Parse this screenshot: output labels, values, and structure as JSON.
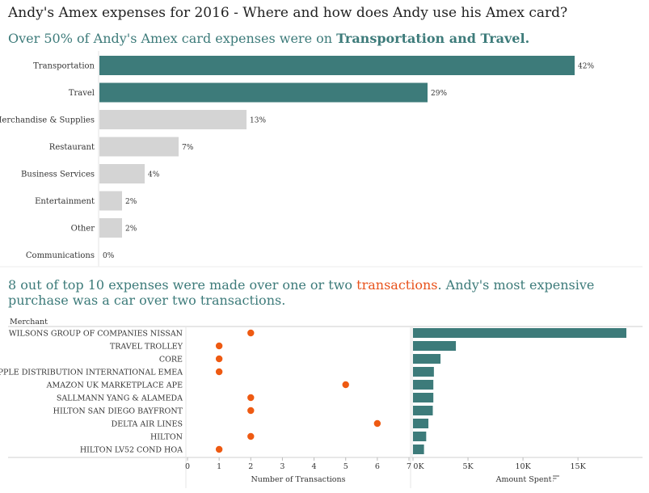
{
  "title": "Andy's Amex expenses for 2016 - Where and how does Andy use his Amex card?",
  "subtitle": {
    "prefix": "Over 50% of Andy's Amex card expenses were on ",
    "bold": "Transportation and Travel."
  },
  "subtitle2": {
    "part1": "8 out of top 10 expenses were made over one or two ",
    "highlight": "transactions",
    "part2": ". Andy's most expensive purchase was a car over two transactions."
  },
  "colors": {
    "highlight_bar": "#3d7b7a",
    "muted_bar": "#d4d4d4",
    "dot": "#ee5a12",
    "text_accent": "#3d7b7a",
    "text_orange": "#e8531c"
  },
  "chart_data": [
    {
      "type": "bar",
      "orientation": "horizontal",
      "categories": [
        "Transportation",
        "Travel",
        "Merchandise & Supplies",
        "Restaurant",
        "Business Services",
        "Entertainment",
        "Other",
        "Communications"
      ],
      "values": [
        42,
        29,
        13,
        7,
        4,
        2,
        2,
        0
      ],
      "value_labels": [
        "42%",
        "29%",
        "13%",
        "7%",
        "4%",
        "2%",
        "2%",
        "0%"
      ],
      "highlighted": [
        "Transportation",
        "Travel"
      ],
      "xlim": [
        0,
        44
      ]
    },
    {
      "type": "scatter",
      "row_header": "Merchant",
      "categories": [
        "WILSONS GROUP OF COMPANIES NISSAN",
        "TRAVEL TROLLEY",
        "CORE",
        "APPLE DISTRIBUTION INTERNATIONAL EMEA",
        "AMAZON UK MARKETPLACE APE",
        "SALLMANN YANG & ALAMEDA",
        "HILTON SAN DIEGO BAYFRONT",
        "DELTA AIR LINES",
        "HILTON",
        "HILTON LV52 COND HOA"
      ],
      "values": [
        2,
        1,
        1,
        1,
        5,
        2,
        2,
        6,
        2,
        1
      ],
      "xlabel": "Number of Transactions",
      "xticks": [
        "0",
        "1",
        "2",
        "3",
        "4",
        "5",
        "6",
        "7"
      ],
      "xlim": [
        0,
        7
      ]
    },
    {
      "type": "bar",
      "orientation": "horizontal",
      "categories": [
        "WILSONS GROUP OF COMPANIES NISSAN",
        "TRAVEL TROLLEY",
        "CORE",
        "APPLE DISTRIBUTION INTERNATIONAL EMEA",
        "AMAZON UK MARKETPLACE APE",
        "SALLMANN YANG & ALAMEDA",
        "HILTON SAN DIEGO BAYFRONT",
        "DELTA AIR LINES",
        "HILTON",
        "HILTON LV52 COND HOA"
      ],
      "values": [
        19400,
        3900,
        2500,
        1900,
        1850,
        1850,
        1800,
        1400,
        1200,
        1000
      ],
      "xlabel": "Amount Spent",
      "xticks": [
        "0K",
        "5K",
        "10K",
        "15K"
      ],
      "xlim": [
        0,
        20000
      ]
    }
  ]
}
